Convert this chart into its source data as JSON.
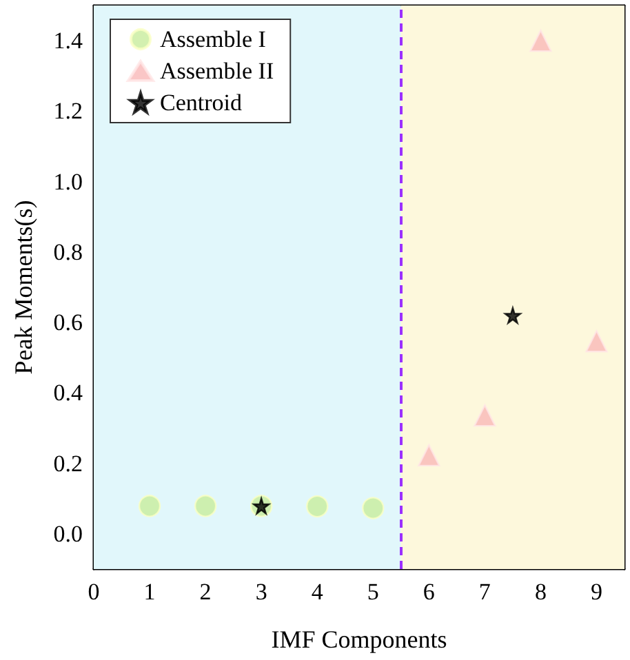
{
  "chart_data": {
    "type": "scatter",
    "xlabel": "IMF Components",
    "ylabel": "Peak Moments(s)",
    "xlim": [
      0,
      9.5
    ],
    "xticks": [
      0,
      1,
      2,
      3,
      4,
      5,
      6,
      7,
      8,
      9
    ],
    "ylim": [
      -0.1,
      1.5
    ],
    "yticks": [
      {
        "value": 0,
        "label": "0.0"
      },
      0.2,
      0.4,
      0.6,
      0.8,
      {
        "value": 1,
        "label": "1.0"
      },
      1.2,
      1.4
    ],
    "grid": false,
    "legend": "top left",
    "bands": [
      {
        "axis": "x",
        "from": 0,
        "to": 5.5,
        "color": "#e1f7fb"
      },
      {
        "axis": "x",
        "from": 5.5,
        "to": 9.5,
        "color": "#fdf8dc"
      }
    ],
    "ref_lines": [
      {
        "axis": "x",
        "value": 5.5,
        "color": "#9b30ff",
        "line_style": "dashed"
      }
    ],
    "series": [
      {
        "name": "Assemble I",
        "color": "#c8ec9c",
        "marker": "circle",
        "x": [
          1,
          2,
          3,
          4,
          5
        ],
        "values": [
          0.079,
          0.079,
          0.079,
          0.078,
          0.073
        ]
      },
      {
        "name": "Assemble II",
        "color": "#f9b8b8",
        "marker": "triangle",
        "x": [
          6,
          7,
          8,
          9
        ],
        "values": [
          0.223,
          0.336,
          1.4,
          0.547
        ]
      },
      {
        "name": "Centroid",
        "color": "#000000",
        "marker": "star",
        "x": [
          3,
          7.5
        ],
        "values": [
          0.079,
          0.62
        ]
      }
    ]
  }
}
